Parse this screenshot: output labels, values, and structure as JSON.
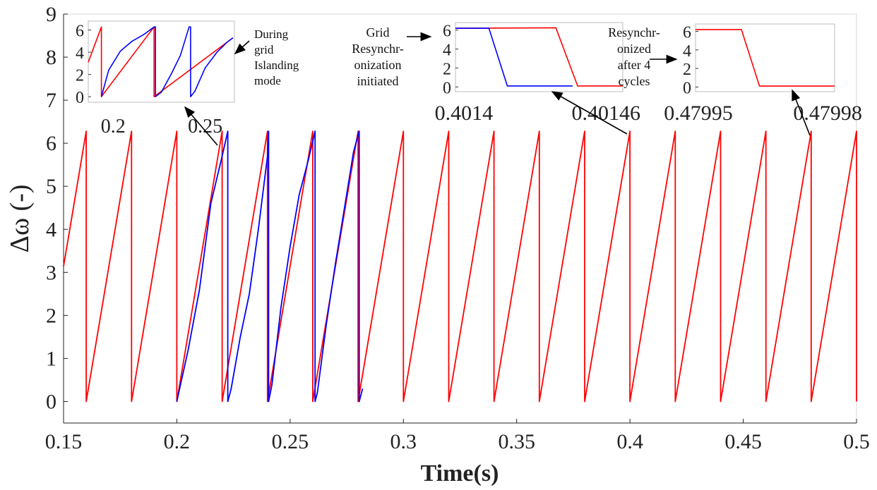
{
  "chart_data": [
    {
      "type": "line",
      "role": "main",
      "xlabel": "Time(s)",
      "ylabel": "Δω (-)",
      "xlim": [
        0.15,
        0.5
      ],
      "ylim": [
        -0.5,
        9
      ],
      "xticks": [
        "0.15",
        "0.2",
        "0.25",
        "0.3",
        "0.35",
        "0.4",
        "0.45",
        "0.5"
      ],
      "yticks": [
        "0",
        "1",
        "2",
        "3",
        "4",
        "5",
        "6",
        "7",
        "8",
        "9"
      ],
      "grid": false,
      "series": [
        {
          "color": "#ff0000",
          "description": "sawtooth phase angle of grid, ramps 0 to 6.28 and resets every 0.02 s",
          "x": [
            0.15,
            0.16,
            0.16,
            0.18,
            0.18,
            0.2,
            0.2,
            0.22,
            0.22,
            0.24,
            0.24,
            0.26,
            0.26,
            0.28,
            0.28,
            0.3,
            0.3,
            0.32,
            0.32,
            0.34,
            0.34,
            0.36,
            0.36,
            0.38,
            0.38,
            0.4,
            0.4,
            0.42,
            0.42,
            0.44,
            0.44,
            0.46,
            0.46,
            0.48,
            0.48,
            0.5,
            0.5
          ],
          "y": [
            3.14,
            6.28,
            0,
            6.28,
            0,
            6.28,
            0,
            6.28,
            0,
            6.28,
            0,
            6.28,
            0,
            6.28,
            0,
            6.28,
            0,
            6.28,
            0,
            6.28,
            0,
            6.28,
            0,
            6.28,
            0,
            6.28,
            0,
            6.28,
            0,
            6.28,
            0,
            6.28,
            0,
            6.28,
            0,
            6.28,
            0
          ]
        },
        {
          "color": "#0000ff",
          "description": "phase angle of inverter during islanding and resynchronization",
          "x": [
            0.2,
            0.205,
            0.21,
            0.215,
            0.22,
            0.2225,
            0.2225,
            0.224,
            0.228,
            0.232,
            0.236,
            0.24,
            0.2405,
            0.2405,
            0.242,
            0.246,
            0.25,
            0.254,
            0.258,
            0.261,
            0.261,
            0.262,
            0.266,
            0.27,
            0.274,
            0.278,
            0.2805,
            0.2805,
            0.282
          ],
          "y": [
            0,
            1.2,
            2.6,
            4.6,
            5.7,
            6.28,
            0,
            0.3,
            1.5,
            2.5,
            4.0,
            5.7,
            6.28,
            0,
            0.4,
            2.2,
            3.6,
            4.8,
            5.6,
            6.28,
            0,
            0.2,
            1.8,
            3.2,
            4.5,
            5.8,
            6.28,
            0,
            0.3
          ]
        }
      ]
    },
    {
      "type": "line",
      "role": "inset",
      "xticks": [
        "0.2",
        "0.25"
      ],
      "yticks": [
        "0",
        "2",
        "4",
        "6"
      ],
      "ylim": [
        -0.5,
        6.8
      ],
      "annotation": [
        "During",
        "grid",
        "Islanding",
        "mode"
      ],
      "series": [
        {
          "color": "#ff0000",
          "x": [
            0,
            0.09,
            0.09,
            0.45,
            0.45,
            0.99
          ],
          "y": [
            3.1,
            6.28,
            0,
            6.28,
            0,
            5.3
          ]
        },
        {
          "color": "#0000ff",
          "x": [
            0.09,
            0.14,
            0.22,
            0.3,
            0.38,
            0.45,
            0.46,
            0.46,
            0.5,
            0.57,
            0.63,
            0.69,
            0.7,
            0.7,
            0.73,
            0.8,
            0.88,
            0.95,
            0.99
          ],
          "y": [
            0,
            2.4,
            4.1,
            5.0,
            5.6,
            6.28,
            6.28,
            0,
            0.4,
            2.1,
            3.7,
            6.28,
            6.28,
            0,
            0.5,
            2.6,
            4.0,
            4.9,
            5.3
          ]
        }
      ]
    },
    {
      "type": "line",
      "role": "inset",
      "xticks": [
        "0.4014",
        "0.40146"
      ],
      "yticks": [
        "0",
        "2",
        "4",
        "6"
      ],
      "ylim": [
        -0.5,
        6.8
      ],
      "annotation": [
        "Grid",
        "Resynchr-",
        "onization",
        "initiated"
      ],
      "series": [
        {
          "color": "#ff0000",
          "x": [
            0,
            0.6,
            0.73,
            1.0
          ],
          "y": [
            6.2,
            6.25,
            0.1,
            0.1
          ]
        },
        {
          "color": "#0000ff",
          "x": [
            0,
            0.2,
            0.31,
            0.7
          ],
          "y": [
            6.2,
            6.2,
            0.1,
            0.1
          ]
        }
      ]
    },
    {
      "type": "line",
      "role": "inset",
      "xticks": [
        "0.47995",
        "0.47998"
      ],
      "yticks": [
        "0",
        "2",
        "4",
        "6"
      ],
      "ylim": [
        -0.5,
        6.8
      ],
      "annotation": [
        "Resynchr-",
        "onized",
        "after 4",
        "cycles"
      ],
      "series": [
        {
          "color": "#ff0000",
          "x": [
            0,
            0.33,
            0.46,
            1.0
          ],
          "y": [
            6.2,
            6.2,
            0.1,
            0.1
          ]
        }
      ]
    }
  ]
}
